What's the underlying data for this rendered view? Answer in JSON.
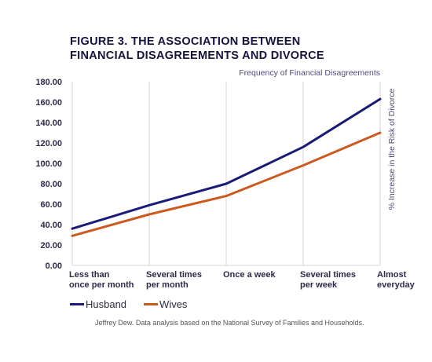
{
  "title_lines": [
    "FIGURE 3. THE ASSOCIATION BETWEEN",
    "FINANCIAL DISAGREEMENTS AND DIVORCE"
  ],
  "source": "Jeffrey Dew. Data analysis based on the National Survey of Families and Households.",
  "chart_data": {
    "type": "line",
    "xlabel": "Frequency of Financial Disagreements",
    "ylabel": "% Increase in the Risk of Divorce",
    "categories": [
      [
        "Less than",
        "once per month"
      ],
      [
        "Several times",
        "per month"
      ],
      [
        "Once a week"
      ],
      [
        "Several times",
        "per week"
      ],
      [
        "Almost",
        "everyday"
      ]
    ],
    "yticks": [
      "0.00",
      "20.00",
      "40.00",
      "60.00",
      "80.00",
      "100.00",
      "120.00",
      "140.00",
      "160.00",
      "180.00"
    ],
    "ylim": [
      0,
      180
    ],
    "grid": "vertical",
    "legend_position": "bottom-left",
    "series": [
      {
        "name": "Husband",
        "color": "#1a1a78",
        "values": [
          36,
          59,
          80,
          116,
          163
        ]
      },
      {
        "name": "Wives",
        "color": "#cc5a1e",
        "values": [
          29,
          50,
          68,
          98,
          130
        ]
      }
    ]
  }
}
